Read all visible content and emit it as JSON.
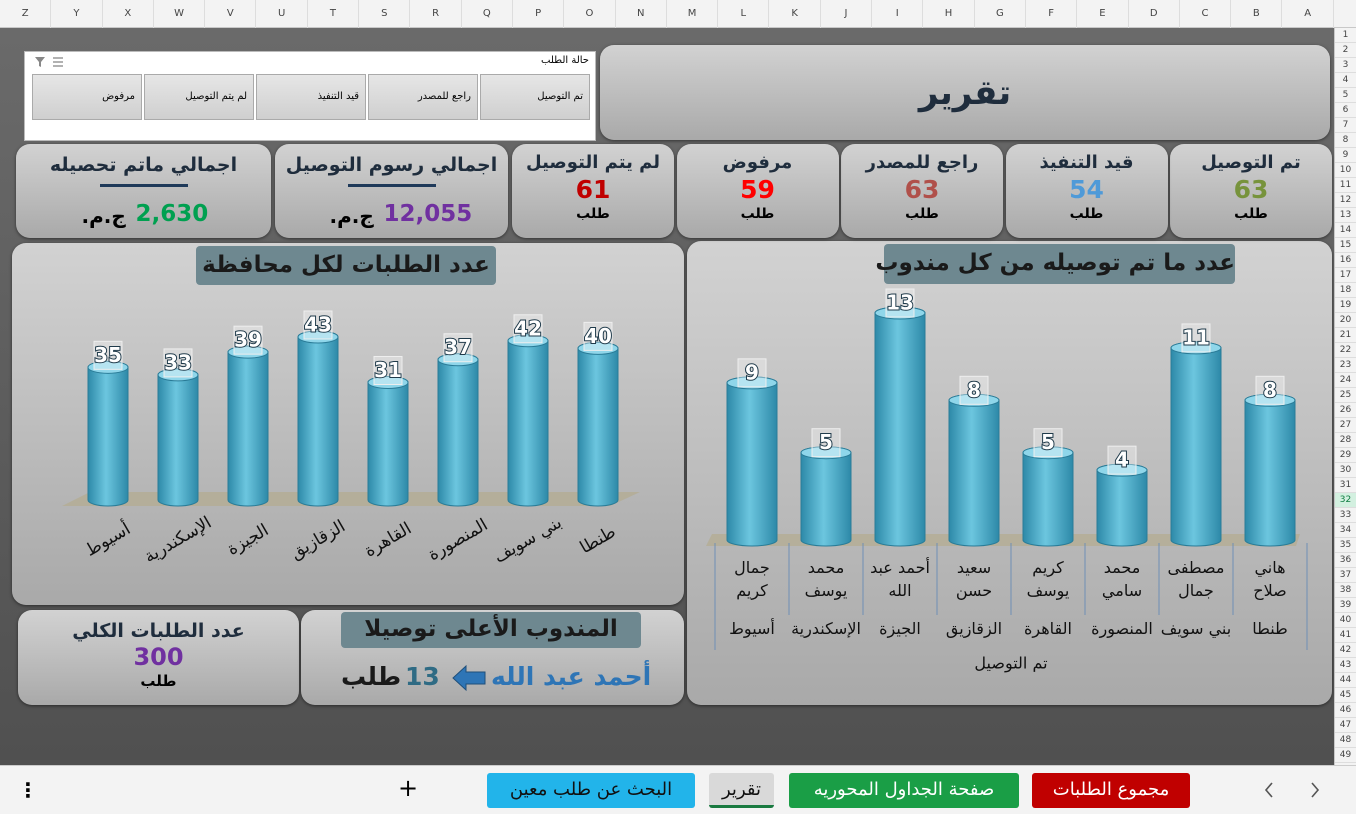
{
  "column_headers": [
    "Z",
    "Y",
    "X",
    "W",
    "V",
    "U",
    "T",
    "S",
    "R",
    "Q",
    "P",
    "O",
    "N",
    "M",
    "L",
    "K",
    "J",
    "I",
    "H",
    "G",
    "F",
    "E",
    "D",
    "C",
    "B",
    "A"
  ],
  "row_numbers": [
    1,
    2,
    3,
    4,
    5,
    6,
    7,
    8,
    9,
    10,
    11,
    12,
    13,
    14,
    15,
    16,
    17,
    18,
    19,
    20,
    21,
    22,
    23,
    24,
    25,
    26,
    27,
    28,
    29,
    30,
    31,
    32,
    33,
    34,
    35,
    36,
    37,
    38,
    39,
    40,
    41,
    42,
    43,
    44,
    45,
    46,
    47,
    48,
    49
  ],
  "active_row": 32,
  "slicer": {
    "title": "حالة الطلب",
    "items": [
      "تم التوصيل",
      "راجع للمصدر",
      "قيد التنفيذ",
      "لم يتم التوصيل",
      "مرفوض"
    ]
  },
  "report_title": "تقرير",
  "status_cards": [
    {
      "label": "تم التوصيل",
      "value": 63,
      "unit": "طلب",
      "color": "#77933c"
    },
    {
      "label": "قيد التنفيذ",
      "value": 54,
      "unit": "طلب",
      "color": "#4f9ad8"
    },
    {
      "label": "راجع للمصدر",
      "value": 63,
      "unit": "طلب",
      "color": "#b0504a"
    },
    {
      "label": "مرفوض",
      "value": 59,
      "unit": "طلب",
      "color": "#ff0000"
    },
    {
      "label": "لم يتم التوصيل",
      "value": 61,
      "unit": "طلب",
      "color": "#c00000"
    }
  ],
  "totals": [
    {
      "label": "اجمالي رسوم التوصيل",
      "value": "12,055",
      "currency": "ج.م.",
      "color": "#7030a0"
    },
    {
      "label": "اجمالي ماتم تحصيله",
      "value": "2,630",
      "currency": "ج.م.",
      "color": "#00a050"
    }
  ],
  "chart_data": [
    {
      "type": "bar",
      "title": "عدد الطلبات لكل محافظة",
      "categories": [
        "أسيوط",
        "الإسكندرية",
        "الجيزة",
        "الزقازيق",
        "القاهرة",
        "المنصورة",
        "بني سويف",
        "طنطا"
      ],
      "values": [
        35,
        33,
        39,
        43,
        31,
        37,
        42,
        40
      ],
      "color": "#3fa3c4"
    },
    {
      "type": "bar",
      "title": "عدد ما تم توصيله من كل مندوب",
      "categories": [
        "جمال كريم",
        "محمد يوسف",
        "أحمد عبد الله",
        "سعيد حسن",
        "كريم يوسف",
        "محمد سامي",
        "مصطفى جمال",
        "هاني صلاح"
      ],
      "category_groups": [
        "أسيوط",
        "الإسكندرية",
        "الجيزة",
        "الزقازيق",
        "القاهرة",
        "المنصورة",
        "بني سويف",
        "طنطا"
      ],
      "x_axis_title": "تم التوصيل",
      "values": [
        9,
        5,
        13,
        8,
        5,
        4,
        11,
        8
      ],
      "color": "#3fa3c4"
    }
  ],
  "total_orders": {
    "label": "عدد الطلبات الكلي",
    "value": 300,
    "unit": "طلب"
  },
  "top_agent": {
    "title": "المندوب الأعلى توصيلا",
    "name": "أحمد عبد الله",
    "value": 13,
    "unit": "طلب"
  },
  "sheet_tabs": [
    {
      "label": "مجموع الطلبات",
      "color": "#c00000"
    },
    {
      "label": "صفحة الجداول المحوريه",
      "color": "#1a9e46"
    },
    {
      "label": "تقرير",
      "color": "#d9d9d9"
    },
    {
      "label": "البحث عن طلب معين",
      "color": "#22b4ea"
    }
  ]
}
